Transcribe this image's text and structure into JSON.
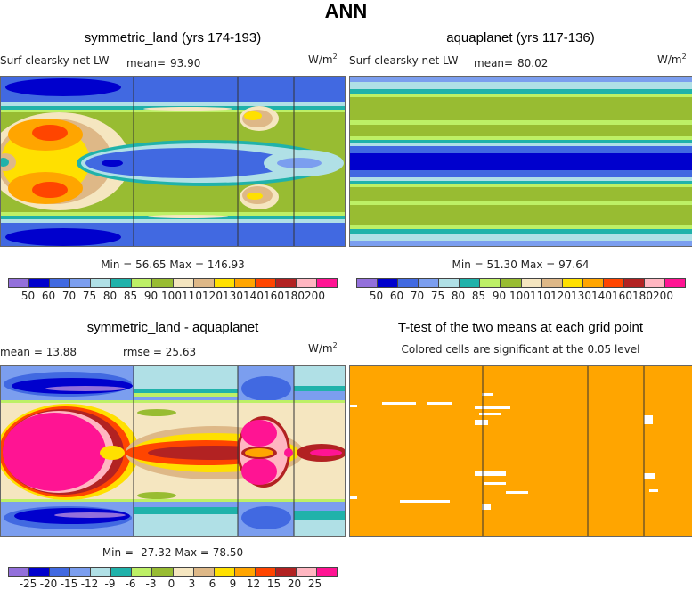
{
  "title": "ANN",
  "units": "W/m",
  "units_sup": "2",
  "panels": {
    "p1": {
      "title": "symmetric_land (yrs 174-193)",
      "variable": "Surf clearsky net LW",
      "mean_label": "mean=",
      "mean": "93.90",
      "min_max": "Min =  56.65 Max =  146.93"
    },
    "p2": {
      "title": "aquaplanet (yrs 117-136)",
      "variable": "Surf clearsky net LW",
      "mean_label": "mean=",
      "mean": "80.02",
      "min_max": "Min =  51.30 Max =  97.64"
    },
    "p3": {
      "title": "symmetric_land - aquaplanet",
      "mean_text": "mean =  13.88",
      "rmse_text": "rmse =  25.63",
      "min_max": "Min = -27.32 Max =  78.50"
    },
    "p4": {
      "title": "T-test of the two means at each grid point",
      "subtitle": "Colored cells are significant at the 0.05 level"
    }
  },
  "chart_data": {
    "type": "heatmap",
    "title": "ANN",
    "field_levels": [
      "50",
      "60",
      "70",
      "75",
      "80",
      "85",
      "90",
      "100",
      "110",
      "120",
      "130",
      "140",
      "160",
      "180",
      "200"
    ],
    "diff_levels": [
      "-25",
      "-20",
      "-15",
      "-12",
      "-9",
      "-6",
      "-3",
      "0",
      "3",
      "6",
      "9",
      "12",
      "15",
      "20",
      "25"
    ],
    "colors": [
      "#9370DB",
      "#0000CD",
      "#4169E1",
      "#7B9EEF",
      "#B0E0E6",
      "#20B2AA",
      "#BDF066",
      "#98BC32",
      "#F5E6C0",
      "#DEB887",
      "#FFE000",
      "#FFA500",
      "#FF4500",
      "#B22222",
      "#FFB6C1",
      "#FF1493"
    ],
    "ttest_color": "#FFA500"
  }
}
